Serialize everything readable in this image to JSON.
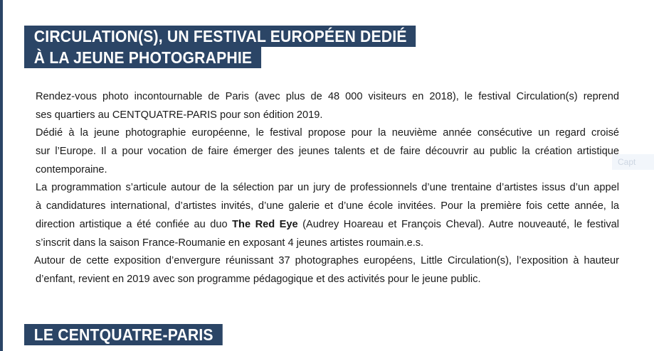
{
  "heading1": {
    "line1": "CIRCULATION(S), UN FESTIVAL EUROPÉEN DEDIÉ",
    "line2": "À LA JEUNE PHOTOGRAPHIE"
  },
  "paragraphs": [
    {
      "lines": [
        "Rendez-vous photo incontournable de Paris (avec plus de 48  000 visiteurs en 2018), le festival Circulation(s) reprend",
        "ses quartiers au CENTQUATRE-PARIS pour son édition 2019."
      ]
    },
    {
      "lines": [
        "Dédié à la jeune photographie européenne, le festival propose pour la neuvième année consécutive un regard croisé",
        "sur l’Europe. Il a pour vocation de faire émerger des jeunes talents et de faire découvrir au public la création artistique",
        "contemporaine."
      ]
    },
    {
      "lines": [
        "La programmation s’articule autour de la sélection par un jury de professionnels d’une trentaine d’artistes issus d’un appel",
        "à candidatures international, d’artistes invités, d’une galerie et d’une école invitées. Pour la première fois cette année, la"
      ],
      "line3_pre": "direction artistique a été confiée au duo ",
      "line3_bold": "The Red Eye",
      "line3_post": " (Audrey Hoareau et François Cheval). Autre nouveauté, le festival",
      "line4": "s’inscrit dans la saison France-Roumanie en exposant 4 jeunes artistes roumain.e.s."
    },
    {
      "lines": [
        "Autour de cette exposition d’envergure réunissant 37 photographes européens, Little Circulation(s), l’exposition à hauteur",
        "d’enfant, revient en 2019 avec son programme pédagogique et des activités pour le jeune public."
      ]
    }
  ],
  "heading2": "LE CENTQUATRE-PARIS",
  "caption_button": "Capt"
}
